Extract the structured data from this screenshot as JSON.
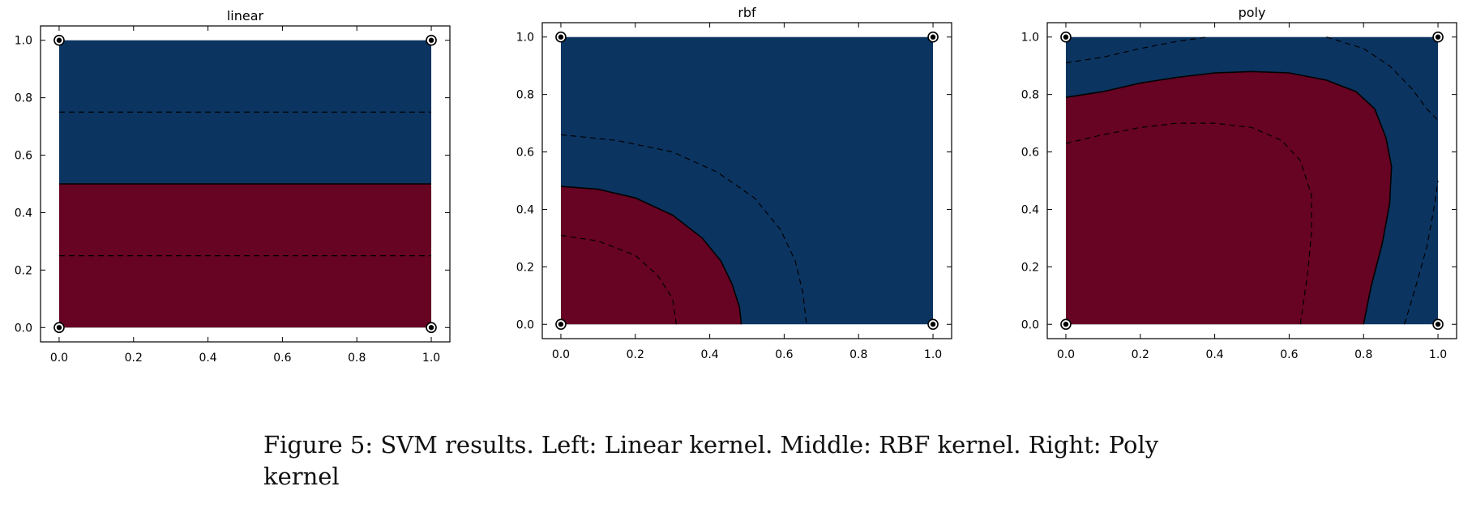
{
  "colors": {
    "blue_region": "#0b3461",
    "red_region": "#670323",
    "axis": "#000000",
    "background": "#ffffff"
  },
  "chart_data": [
    {
      "type": "contour",
      "title": "linear",
      "xlim": [
        -0.05,
        1.05
      ],
      "ylim": [
        -0.05,
        1.05
      ],
      "x_ticks": [
        "0.0",
        "0.2",
        "0.4",
        "0.6",
        "0.8",
        "1.0"
      ],
      "y_ticks": [
        "0.0",
        "0.2",
        "0.4",
        "0.6",
        "0.8",
        "1.0"
      ],
      "points": [
        [
          0,
          0
        ],
        [
          0,
          1
        ],
        [
          1,
          0
        ],
        [
          1,
          1
        ]
      ],
      "red_region": [
        [
          0,
          0
        ],
        [
          1,
          0
        ],
        [
          1,
          0.5
        ],
        [
          0,
          0.5
        ]
      ],
      "boundary": [
        [
          0,
          0.5
        ],
        [
          1,
          0.5
        ]
      ],
      "margins": [
        [
          [
            0,
            0.75
          ],
          [
            1,
            0.75
          ]
        ],
        [
          [
            0,
            0.25
          ],
          [
            1,
            0.25
          ]
        ]
      ]
    },
    {
      "type": "contour",
      "title": "rbf",
      "xlim": [
        -0.05,
        1.05
      ],
      "ylim": [
        -0.05,
        1.05
      ],
      "x_ticks": [
        "0.0",
        "0.2",
        "0.4",
        "0.6",
        "0.8",
        "1.0"
      ],
      "y_ticks": [
        "0.0",
        "0.2",
        "0.4",
        "0.6",
        "0.8",
        "1.0"
      ],
      "points": [
        [
          0,
          0
        ],
        [
          0,
          1
        ],
        [
          1,
          0
        ],
        [
          1,
          1
        ]
      ],
      "red_region": [
        [
          0,
          0
        ],
        [
          0,
          0.48
        ],
        [
          0.1,
          0.47
        ],
        [
          0.2,
          0.44
        ],
        [
          0.3,
          0.38
        ],
        [
          0.38,
          0.3
        ],
        [
          0.43,
          0.22
        ],
        [
          0.46,
          0.14
        ],
        [
          0.48,
          0.06
        ],
        [
          0.485,
          0
        ]
      ],
      "boundary": [
        [
          0,
          0.48
        ],
        [
          0.1,
          0.47
        ],
        [
          0.2,
          0.44
        ],
        [
          0.3,
          0.38
        ],
        [
          0.38,
          0.3
        ],
        [
          0.43,
          0.22
        ],
        [
          0.46,
          0.14
        ],
        [
          0.48,
          0.06
        ],
        [
          0.485,
          0
        ]
      ],
      "margins": [
        [
          [
            0,
            0.66
          ],
          [
            0.15,
            0.64
          ],
          [
            0.3,
            0.6
          ],
          [
            0.42,
            0.53
          ],
          [
            0.52,
            0.44
          ],
          [
            0.59,
            0.33
          ],
          [
            0.63,
            0.22
          ],
          [
            0.65,
            0.11
          ],
          [
            0.66,
            0
          ]
        ],
        [
          [
            0,
            0.31
          ],
          [
            0.1,
            0.29
          ],
          [
            0.2,
            0.24
          ],
          [
            0.26,
            0.17
          ],
          [
            0.3,
            0.09
          ],
          [
            0.31,
            0
          ]
        ]
      ]
    },
    {
      "type": "contour",
      "title": "poly",
      "xlim": [
        -0.05,
        1.05
      ],
      "ylim": [
        -0.05,
        1.05
      ],
      "x_ticks": [
        "0.0",
        "0.2",
        "0.4",
        "0.6",
        "0.8",
        "1.0"
      ],
      "y_ticks": [
        "0.0",
        "0.2",
        "0.4",
        "0.6",
        "0.8",
        "1.0"
      ],
      "points": [
        [
          0,
          0
        ],
        [
          0,
          1
        ],
        [
          1,
          0
        ],
        [
          1,
          1
        ]
      ],
      "red_region": [
        [
          0,
          0
        ],
        [
          0,
          0.79
        ],
        [
          0.1,
          0.81
        ],
        [
          0.2,
          0.84
        ],
        [
          0.3,
          0.86
        ],
        [
          0.4,
          0.875
        ],
        [
          0.5,
          0.88
        ],
        [
          0.6,
          0.875
        ],
        [
          0.7,
          0.85
        ],
        [
          0.78,
          0.81
        ],
        [
          0.83,
          0.75
        ],
        [
          0.86,
          0.65
        ],
        [
          0.875,
          0.55
        ],
        [
          0.87,
          0.42
        ],
        [
          0.85,
          0.28
        ],
        [
          0.82,
          0.13
        ],
        [
          0.8,
          0
        ]
      ],
      "boundary": [
        [
          0,
          0.79
        ],
        [
          0.1,
          0.81
        ],
        [
          0.2,
          0.84
        ],
        [
          0.3,
          0.86
        ],
        [
          0.4,
          0.875
        ],
        [
          0.5,
          0.88
        ],
        [
          0.6,
          0.875
        ],
        [
          0.7,
          0.85
        ],
        [
          0.78,
          0.81
        ],
        [
          0.83,
          0.75
        ],
        [
          0.86,
          0.65
        ],
        [
          0.875,
          0.55
        ],
        [
          0.87,
          0.42
        ],
        [
          0.85,
          0.28
        ],
        [
          0.82,
          0.13
        ],
        [
          0.8,
          0
        ]
      ],
      "margins": [
        [
          [
            0,
            0.91
          ],
          [
            0.1,
            0.93
          ],
          [
            0.2,
            0.96
          ],
          [
            0.3,
            0.985
          ],
          [
            0.38,
            1.0
          ]
        ],
        [
          [
            0.7,
            1.0
          ],
          [
            0.8,
            0.96
          ],
          [
            0.87,
            0.9
          ],
          [
            0.93,
            0.82
          ],
          [
            0.97,
            0.75
          ],
          [
            1.0,
            0.71
          ]
        ],
        [
          [
            0,
            0.63
          ],
          [
            0.1,
            0.66
          ],
          [
            0.2,
            0.685
          ],
          [
            0.3,
            0.7
          ],
          [
            0.4,
            0.7
          ],
          [
            0.5,
            0.685
          ],
          [
            0.58,
            0.64
          ],
          [
            0.63,
            0.57
          ],
          [
            0.66,
            0.45
          ],
          [
            0.66,
            0.32
          ],
          [
            0.65,
            0.18
          ],
          [
            0.63,
            0
          ]
        ],
        [
          [
            0.91,
            0
          ],
          [
            0.94,
            0.13
          ],
          [
            0.97,
            0.27
          ],
          [
            0.99,
            0.41
          ],
          [
            1.0,
            0.5
          ]
        ]
      ]
    }
  ],
  "caption": {
    "line1": "Figure 5: SVM results. Left: Linear kernel. Middle: RBF kernel. Right: Poly",
    "line2": "kernel"
  }
}
